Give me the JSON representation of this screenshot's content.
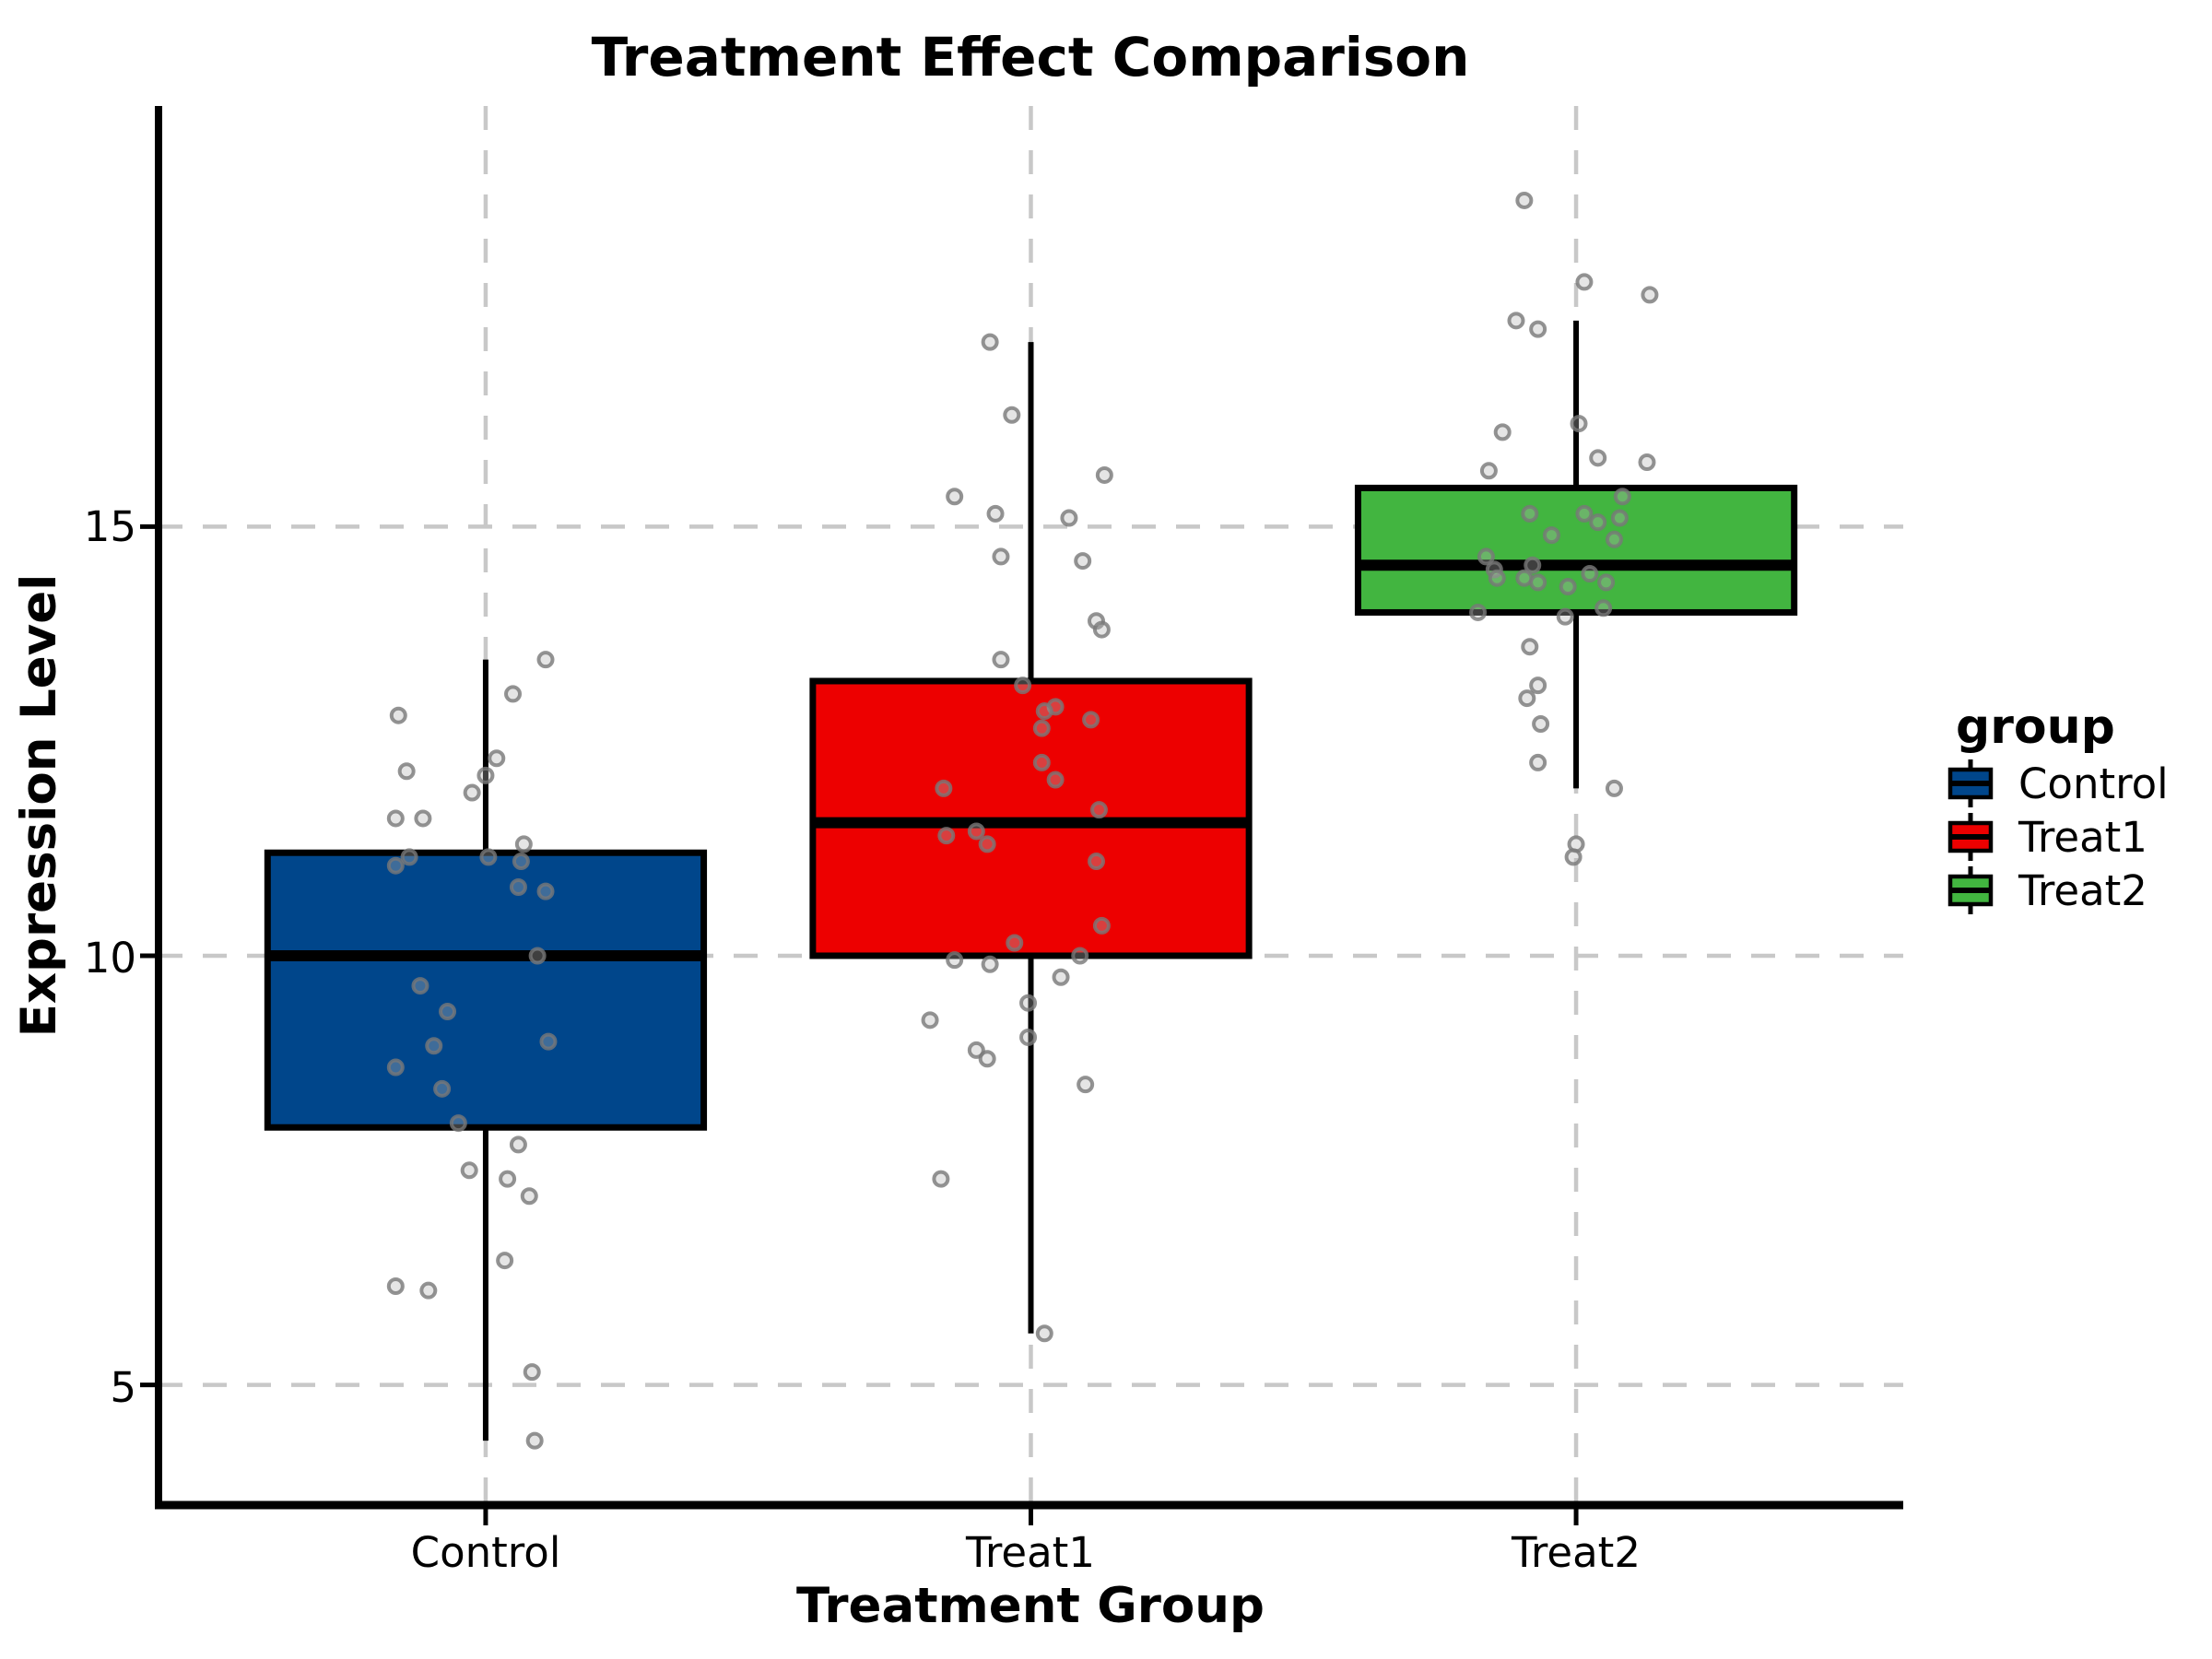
{
  "title": "Treatment Effect Comparison",
  "chart_data": {
    "type": "boxplot",
    "title": "Treatment Effect Comparison",
    "xlabel": "Treatment Group",
    "ylabel": "Expression Level",
    "categories": [
      "Control",
      "Treat1",
      "Treat2"
    ],
    "y_ticks": [
      5,
      10,
      15
    ],
    "ylim": [
      3.6,
      19.9
    ],
    "grid": "dashed gray, horizontal at y ticks and vertical at each category",
    "legend": {
      "title": "group",
      "position": "right",
      "entries": [
        {
          "label": "Control",
          "color": "#00468B"
        },
        {
          "label": "Treat1",
          "color": "#ED0000"
        },
        {
          "label": "Treat2",
          "color": "#42B540"
        }
      ]
    },
    "series": [
      {
        "name": "Control",
        "color": "#00468B",
        "box": {
          "whisker_low": 4.35,
          "q1": 8.0,
          "median": 10.0,
          "q3": 11.2,
          "whisker_high": 13.45
        },
        "points": [
          [
            13.45,
            0.11
          ],
          [
            13.05,
            0.05
          ],
          [
            12.8,
            -0.16
          ],
          [
            12.3,
            0.02
          ],
          [
            12.15,
            -0.145
          ],
          [
            12.1,
            0
          ],
          [
            11.9,
            -0.025
          ],
          [
            11.6,
            -0.165
          ],
          [
            11.6,
            -0.115
          ],
          [
            11.3,
            0.07
          ],
          [
            11.15,
            0.005
          ],
          [
            11.15,
            -0.14
          ],
          [
            11.1,
            0.065
          ],
          [
            11.05,
            -0.165
          ],
          [
            10.8,
            0.06
          ],
          [
            10.75,
            0.11
          ],
          [
            10.0,
            0.095
          ],
          [
            9.65,
            -0.12
          ],
          [
            9.35,
            -0.07
          ],
          [
            9.0,
            0.115
          ],
          [
            8.95,
            -0.095
          ],
          [
            8.7,
            -0.165
          ],
          [
            8.45,
            -0.08
          ],
          [
            8.05,
            -0.05
          ],
          [
            7.8,
            0.06
          ],
          [
            7.5,
            -0.03
          ],
          [
            7.4,
            0.04
          ],
          [
            7.2,
            0.08
          ],
          [
            6.45,
            0.035
          ],
          [
            6.15,
            -0.165
          ],
          [
            6.1,
            -0.105
          ],
          [
            5.15,
            0.085
          ],
          [
            4.35,
            0.09
          ]
        ]
      },
      {
        "name": "Treat1",
        "color": "#ED0000",
        "box": {
          "whisker_low": 5.6,
          "q1": 10.0,
          "median": 11.55,
          "q3": 13.2,
          "whisker_high": 17.15
        },
        "points": [
          [
            17.15,
            -0.075
          ],
          [
            16.3,
            -0.035
          ],
          [
            15.6,
            0.135
          ],
          [
            15.35,
            -0.14
          ],
          [
            15.15,
            -0.065
          ],
          [
            15.1,
            0.07
          ],
          [
            14.65,
            -0.055
          ],
          [
            14.6,
            0.095
          ],
          [
            13.9,
            0.12
          ],
          [
            13.8,
            0.13
          ],
          [
            13.45,
            -0.055
          ],
          [
            13.15,
            -0.015
          ],
          [
            12.9,
            0.045
          ],
          [
            12.85,
            0.025
          ],
          [
            12.75,
            0.11
          ],
          [
            12.65,
            0.02
          ],
          [
            12.25,
            0.02
          ],
          [
            12.05,
            0.045
          ],
          [
            11.95,
            -0.16
          ],
          [
            11.7,
            0.125
          ],
          [
            11.45,
            -0.1
          ],
          [
            11.4,
            -0.155
          ],
          [
            11.3,
            -0.08
          ],
          [
            11.1,
            0.12
          ],
          [
            10.35,
            0.13
          ],
          [
            10.15,
            -0.03
          ],
          [
            10.0,
            0.09
          ],
          [
            9.95,
            -0.14
          ],
          [
            9.9,
            -0.075
          ],
          [
            9.75,
            0.055
          ],
          [
            9.45,
            -0.005
          ],
          [
            9.25,
            -0.185
          ],
          [
            9.05,
            -0.005
          ],
          [
            8.9,
            -0.1
          ],
          [
            8.8,
            -0.08
          ],
          [
            8.5,
            0.1
          ],
          [
            7.4,
            -0.165
          ],
          [
            5.6,
            0.025
          ]
        ]
      },
      {
        "name": "Treat2",
        "color": "#42B540",
        "box": {
          "whisker_low": 11.95,
          "q1": 14.0,
          "median": 14.55,
          "q3": 15.45,
          "whisker_high": 17.4
        },
        "points": [
          [
            18.8,
            -0.095
          ],
          [
            17.85,
            0.015
          ],
          [
            17.7,
            0.135
          ],
          [
            17.4,
            -0.11
          ],
          [
            17.3,
            -0.07
          ],
          [
            16.2,
            0.005
          ],
          [
            16.1,
            -0.135
          ],
          [
            15.8,
            0.04
          ],
          [
            15.75,
            0.13
          ],
          [
            15.65,
            -0.16
          ],
          [
            15.35,
            0.085
          ],
          [
            15.15,
            -0.085
          ],
          [
            15.15,
            0.015
          ],
          [
            15.1,
            0.08
          ],
          [
            15.05,
            0.04
          ],
          [
            14.9,
            -0.045
          ],
          [
            14.85,
            0.07
          ],
          [
            14.65,
            -0.165
          ],
          [
            14.55,
            -0.08
          ],
          [
            14.5,
            -0.15
          ],
          [
            14.45,
            0.025
          ],
          [
            14.4,
            -0.145
          ],
          [
            14.4,
            -0.095
          ],
          [
            14.35,
            -0.07
          ],
          [
            14.35,
            0.055
          ],
          [
            14.3,
            -0.015
          ],
          [
            14.05,
            0.05
          ],
          [
            14.0,
            -0.18
          ],
          [
            13.95,
            -0.02
          ],
          [
            13.6,
            -0.085
          ],
          [
            13.15,
            -0.07
          ],
          [
            13.0,
            -0.09
          ],
          [
            12.7,
            -0.065
          ],
          [
            12.25,
            -0.07
          ],
          [
            11.95,
            0.07
          ],
          [
            11.3,
            0
          ],
          [
            11.15,
            -0.005
          ]
        ]
      }
    ],
    "style": {
      "grid_color": "#C8C8C8",
      "axis_color": "#000000",
      "point_stroke": "#787878",
      "point_fill": "#B4B4B4"
    }
  }
}
